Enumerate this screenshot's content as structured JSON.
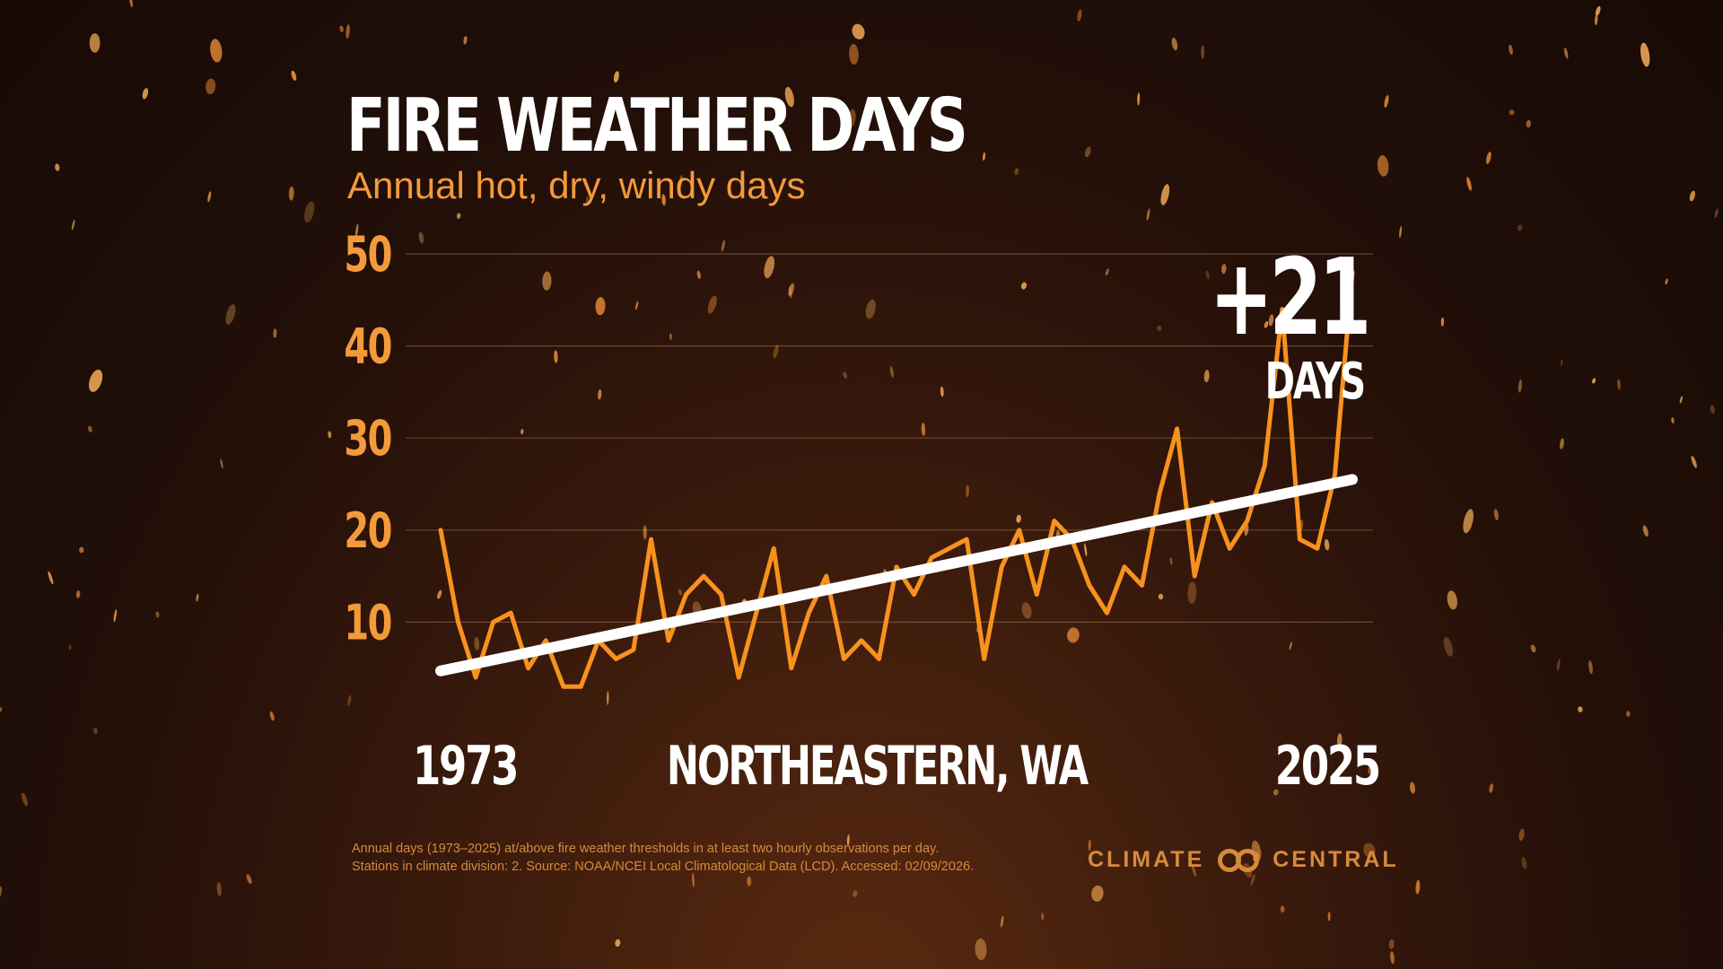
{
  "title": "FIRE WEATHER DAYS",
  "subtitle": "Annual hot, dry, windy days",
  "region": "NORTHEASTERN, WA",
  "change_value": "+21",
  "change_unit": "DAYS",
  "footnote_line1": "Annual days (1973–2025) at/above fire weather thresholds in at least two hourly observations per day.",
  "footnote_line2": "Stations in climate division: 2. Source: NOAA/NCEI Local Climatological Data (LCD). Accessed: 02/09/2026.",
  "logo_left": "CLIMATE",
  "logo_right": "CENTRAL",
  "colors": {
    "series": "#f7921e",
    "trend": "#ffffff",
    "axis_labels": "#f39a3b",
    "year_labels": "#ffffff"
  },
  "chart_data": {
    "type": "line",
    "xlim": [
      1973,
      2025
    ],
    "ylim": [
      0,
      50
    ],
    "yticks": [
      10,
      20,
      30,
      40,
      50
    ],
    "x_start_label": "1973",
    "x_end_label": "2025",
    "grid": true,
    "series": [
      {
        "x": [
          1973,
          1974,
          1975,
          1976,
          1977,
          1978,
          1979,
          1980,
          1981,
          1982,
          1983,
          1984,
          1985,
          1986,
          1987,
          1988,
          1989,
          1990,
          1991,
          1992,
          1993,
          1994,
          1995,
          1996,
          1997,
          1998,
          1999,
          2000,
          2001,
          2002,
          2003,
          2004,
          2005,
          2006,
          2007,
          2008,
          2009,
          2010,
          2011,
          2012,
          2013,
          2014,
          2015,
          2016,
          2017,
          2018,
          2019,
          2020,
          2021,
          2022,
          2023,
          2024,
          2025
        ],
        "values": [
          20,
          10,
          4,
          10,
          11,
          5,
          8,
          3,
          3,
          8,
          6,
          7,
          19,
          8,
          13,
          15,
          13,
          4,
          11,
          18,
          5,
          11,
          15,
          6,
          8,
          6,
          16,
          13,
          17,
          18,
          19,
          6,
          16,
          20,
          13,
          21,
          19,
          14,
          11,
          16,
          14,
          24,
          31,
          15,
          23,
          18,
          21,
          27,
          44,
          19,
          18,
          26,
          48
        ]
      },
      {
        "type": "trend",
        "x": [
          1973,
          2025
        ],
        "values": [
          4.7,
          25.5
        ]
      }
    ]
  }
}
